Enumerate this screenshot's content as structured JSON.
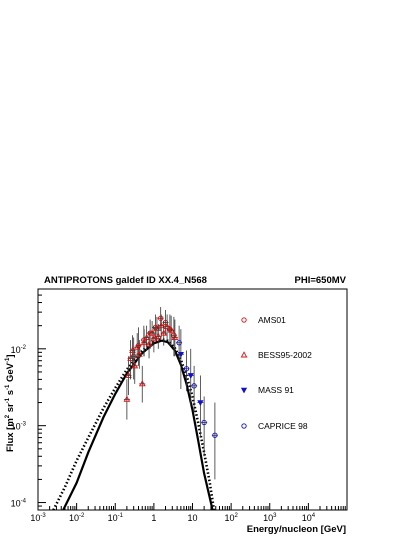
{
  "chart_data": {
    "type": "scatter",
    "title": "ANTIPROTONS galdef ID XX.4_N568",
    "subtitle": "PHI=650MV",
    "xlabel": "Energy/nucleon [GeV]",
    "ylabel_parts": [
      "Flux [m",
      "2",
      " sr",
      "-1",
      " s",
      "-1",
      " GeV",
      "-1",
      "]"
    ],
    "x_scale": "log",
    "y_scale": "log",
    "xlim": [
      0.001,
      100000
    ],
    "ylim": [
      8e-05,
      0.06
    ],
    "x_ticks": [
      {
        "base": "10",
        "exp": "-3",
        "value": 0.001
      },
      {
        "base": "10",
        "exp": "-2",
        "value": 0.01
      },
      {
        "base": "10",
        "exp": "-1",
        "value": 0.1
      },
      {
        "base": "1",
        "exp": "",
        "value": 1
      },
      {
        "base": "10",
        "exp": "",
        "value": 10
      },
      {
        "base": "10",
        "exp": "2",
        "value": 100
      },
      {
        "base": "10",
        "exp": "3",
        "value": 1000
      },
      {
        "base": "10",
        "exp": "4",
        "value": 10000
      }
    ],
    "y_ticks": [
      {
        "base": "10",
        "exp": "-4",
        "value": 0.0001
      },
      {
        "base": "10",
        "exp": "-3",
        "value": 0.001
      },
      {
        "base": "10",
        "exp": "-2",
        "value": 0.01
      }
    ],
    "legend": [
      {
        "label": "AMS01",
        "marker": "circle",
        "color": "#dd1111"
      },
      {
        "label": "BESS95-2002",
        "marker": "triangle-up",
        "color": "#dd1111"
      },
      {
        "label": "MASS 91",
        "marker": "triangle-down-filled",
        "color": "#1111cc"
      },
      {
        "label": "CAPRICE 98",
        "marker": "circle",
        "color": "#1111cc"
      }
    ],
    "series": [
      {
        "name": "AMS01",
        "marker": "circle",
        "color": "#dd1111",
        "points": [
          {
            "x": 0.3,
            "y": 0.008,
            "yerr": [
              0.004,
              0.014
            ]
          },
          {
            "x": 0.4,
            "y": 0.011,
            "yerr": [
              0.006,
              0.019
            ]
          },
          {
            "x": 0.55,
            "y": 0.013,
            "yerr": [
              0.008,
              0.02
            ]
          },
          {
            "x": 0.8,
            "y": 0.016,
            "yerr": [
              0.01,
              0.024
            ]
          },
          {
            "x": 1.1,
            "y": 0.019,
            "yerr": [
              0.013,
              0.028
            ]
          },
          {
            "x": 1.5,
            "y": 0.025,
            "yerr": [
              0.017,
              0.035
            ]
          },
          {
            "x": 2.0,
            "y": 0.022,
            "yerr": [
              0.015,
              0.032
            ]
          },
          {
            "x": 2.6,
            "y": 0.018,
            "yerr": [
              0.011,
              0.028
            ]
          },
          {
            "x": 3.3,
            "y": 0.015,
            "yerr": [
              0.008,
              0.026
            ]
          }
        ]
      },
      {
        "name": "BESS95-2002",
        "marker": "triangle-up",
        "color": "#dd1111",
        "points": [
          {
            "x": 0.2,
            "y": 0.0022,
            "yerr": [
              0.0012,
              0.004
            ]
          },
          {
            "x": 0.22,
            "y": 0.0045,
            "yerr": [
              0.0025,
              0.008
            ]
          },
          {
            "x": 0.25,
            "y": 0.0075,
            "yerr": [
              0.004,
              0.013
            ]
          },
          {
            "x": 0.28,
            "y": 0.0095,
            "yerr": [
              0.006,
              0.015
            ]
          },
          {
            "x": 0.32,
            "y": 0.006,
            "yerr": [
              0.0035,
              0.01
            ]
          },
          {
            "x": 0.37,
            "y": 0.0105,
            "yerr": [
              0.007,
              0.016
            ]
          },
          {
            "x": 0.42,
            "y": 0.0085,
            "yerr": [
              0.0055,
              0.013
            ]
          },
          {
            "x": 0.5,
            "y": 0.0035,
            "yerr": [
              0.002,
              0.006
            ]
          },
          {
            "x": 0.56,
            "y": 0.012,
            "yerr": [
              0.008,
              0.018
            ]
          },
          {
            "x": 0.65,
            "y": 0.014,
            "yerr": [
              0.0095,
              0.02
            ]
          },
          {
            "x": 0.75,
            "y": 0.0115,
            "yerr": [
              0.0075,
              0.017
            ]
          },
          {
            "x": 0.9,
            "y": 0.016,
            "yerr": [
              0.011,
              0.023
            ]
          },
          {
            "x": 1.0,
            "y": 0.0135,
            "yerr": [
              0.009,
              0.02
            ]
          },
          {
            "x": 1.2,
            "y": 0.0185,
            "yerr": [
              0.013,
              0.026
            ]
          },
          {
            "x": 1.3,
            "y": 0.0145,
            "yerr": [
              0.01,
              0.021
            ]
          },
          {
            "x": 1.55,
            "y": 0.02,
            "yerr": [
              0.014,
              0.028
            ]
          },
          {
            "x": 1.8,
            "y": 0.016,
            "yerr": [
              0.011,
              0.023
            ]
          },
          {
            "x": 2.2,
            "y": 0.0195,
            "yerr": [
              0.013,
              0.028
            ]
          },
          {
            "x": 2.8,
            "y": 0.0175,
            "yerr": [
              0.011,
              0.027
            ]
          },
          {
            "x": 3.5,
            "y": 0.014,
            "yerr": [
              0.008,
              0.024
            ]
          }
        ]
      },
      {
        "name": "MASS 91",
        "marker": "triangle-down-filled",
        "color": "#1111cc",
        "points": [
          {
            "x": 5.0,
            "y": 0.0085,
            "yerr": [
              0.003,
              0.018
            ]
          },
          {
            "x": 9.0,
            "y": 0.0045,
            "yerr": [
              0.0018,
              0.01
            ]
          },
          {
            "x": 16.0,
            "y": 0.002,
            "yerr": [
              0.0007,
              0.0045
            ]
          }
        ]
      },
      {
        "name": "CAPRICE 98",
        "marker": "circle",
        "color": "#1111cc",
        "points": [
          {
            "x": 4.5,
            "y": 0.012,
            "yerr": [
              0.007,
              0.02
            ]
          },
          {
            "x": 7.0,
            "y": 0.0055,
            "yerr": [
              0.0028,
              0.0095
            ]
          },
          {
            "x": 11.0,
            "y": 0.0033,
            "yerr": [
              0.0015,
              0.006
            ]
          },
          {
            "x": 20.0,
            "y": 0.0011,
            "yerr": [
              0.0004,
              0.0024
            ]
          },
          {
            "x": 38.0,
            "y": 0.00075,
            "yerr": [
              0.0002,
              0.002
            ]
          }
        ]
      }
    ],
    "curves": [
      {
        "style": "solid",
        "points": [
          [
            0.0045,
            8e-05
          ],
          [
            0.01,
            0.00018
          ],
          [
            0.02,
            0.00045
          ],
          [
            0.05,
            0.0013
          ],
          [
            0.1,
            0.0026
          ],
          [
            0.2,
            0.0048
          ],
          [
            0.5,
            0.0088
          ],
          [
            1.0,
            0.0118
          ],
          [
            1.6,
            0.0128
          ],
          [
            2.3,
            0.0122
          ],
          [
            3.5,
            0.0095
          ],
          [
            5.0,
            0.0062
          ],
          [
            7.0,
            0.0035
          ],
          [
            10.0,
            0.0016
          ],
          [
            14.0,
            0.00065
          ],
          [
            20.0,
            0.00024
          ],
          [
            30.0,
            0.0001
          ],
          [
            33.0,
            8e-05
          ]
        ]
      },
      {
        "style": "dotted",
        "points": [
          [
            0.0025,
            8e-05
          ],
          [
            0.005,
            0.00016
          ],
          [
            0.01,
            0.00035
          ],
          [
            0.02,
            0.0007
          ],
          [
            0.05,
            0.0017
          ],
          [
            0.1,
            0.0031
          ],
          [
            0.2,
            0.0054
          ],
          [
            0.5,
            0.0095
          ],
          [
            1.0,
            0.0125
          ],
          [
            1.6,
            0.0133
          ],
          [
            2.3,
            0.0127
          ],
          [
            3.5,
            0.0102
          ],
          [
            5.0,
            0.0072
          ],
          [
            7.0,
            0.0045
          ],
          [
            10.0,
            0.0024
          ],
          [
            14.0,
            0.0011
          ],
          [
            20.0,
            0.00045
          ],
          [
            28.0,
            0.00018
          ],
          [
            36.0,
            8e-05
          ]
        ]
      }
    ]
  }
}
